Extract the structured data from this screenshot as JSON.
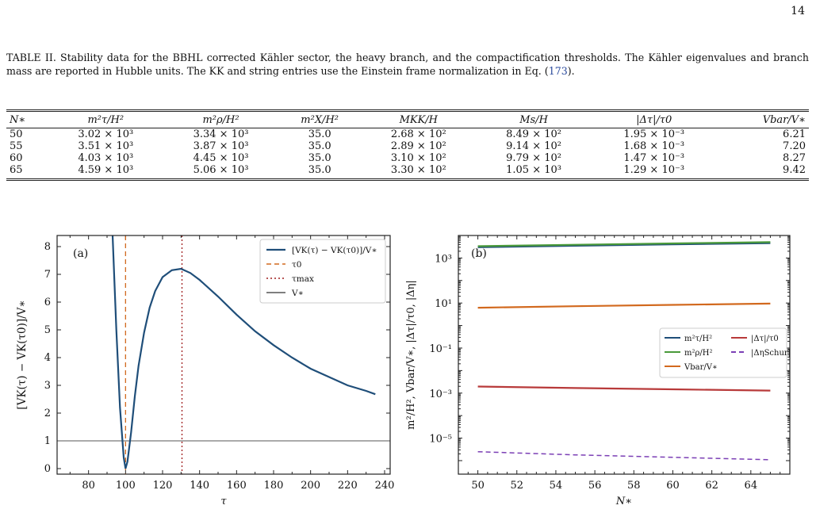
{
  "page_number": "14",
  "caption": {
    "text": "TABLE II. Stability data for the BBHL corrected Kähler sector, the heavy branch, and the compactification thresholds. The Kähler eigenvalues and branch mass are reported in Hubble units. The KK and string entries use the Einstein frame normalization in Eq. (",
    "eq_ref": "173",
    "tail": ")."
  },
  "table": {
    "headers": [
      "N∗",
      "m²τ/H²",
      "m²ρ/H²",
      "m²X/H²",
      "MKK/H",
      "Ms/H",
      "|Δτ|/τ0",
      "Vbar/V∗"
    ],
    "rows": [
      [
        "50",
        "3.02 × 10³",
        "3.34 × 10³",
        "35.0",
        "2.68 × 10²",
        "8.49 × 10²",
        "1.95 × 10⁻³",
        "6.21"
      ],
      [
        "55",
        "3.51 × 10³",
        "3.87 × 10³",
        "35.0",
        "2.89 × 10²",
        "9.14 × 10²",
        "1.68 × 10⁻³",
        "7.20"
      ],
      [
        "60",
        "4.03 × 10³",
        "4.45 × 10³",
        "35.0",
        "3.10 × 10²",
        "9.79 × 10²",
        "1.47 × 10⁻³",
        "8.27"
      ],
      [
        "65",
        "4.59 × 10³",
        "5.06 × 10³",
        "35.0",
        "3.30 × 10²",
        "1.05 × 10³",
        "1.29 × 10⁻³",
        "9.42"
      ]
    ]
  },
  "chart_data": [
    {
      "type": "line",
      "panel_label": "(a)",
      "xlabel": "τ",
      "ylabel": "[VK(τ) − VK(τ0)]/V∗",
      "xlim": [
        63,
        243
      ],
      "ylim": [
        -0.2,
        8.4
      ],
      "xticks": [
        80,
        100,
        120,
        140,
        160,
        180,
        200,
        220,
        240
      ],
      "yticks": [
        0,
        1,
        2,
        3,
        4,
        5,
        6,
        7,
        8
      ],
      "legend_position": "top-right",
      "series": [
        {
          "name": "[VK(τ) − VK(τ0)]/V∗",
          "color": "#1f4e79",
          "style": "solid",
          "x": [
            93,
            95,
            97,
            99,
            100,
            101,
            103,
            105,
            107,
            110,
            113,
            116,
            120,
            125,
            130,
            135,
            140,
            150,
            160,
            170,
            180,
            190,
            200,
            210,
            220,
            230,
            235
          ],
          "y": [
            8.4,
            5.0,
            2.2,
            0.4,
            0.0,
            0.25,
            1.3,
            2.6,
            3.7,
            4.9,
            5.8,
            6.4,
            6.9,
            7.15,
            7.2,
            7.05,
            6.8,
            6.2,
            5.55,
            4.95,
            4.45,
            4.0,
            3.6,
            3.3,
            3.0,
            2.8,
            2.68
          ]
        },
        {
          "name": "τ0",
          "color": "#d2691e",
          "style": "dashed",
          "x_value": 100
        },
        {
          "name": "τmax",
          "color": "#a01e1e",
          "style": "dotted",
          "x_value": 130.5
        },
        {
          "name": "V∗",
          "color": "#555555",
          "style": "solid",
          "y_value": 1
        }
      ]
    },
    {
      "type": "line",
      "panel_label": "(b)",
      "xlabel": "N∗",
      "ylabel": "m²/H², Vbar/V∗, |Δτ|/τ0, |Δη|",
      "log_y": true,
      "xlim": [
        49,
        66
      ],
      "ylim_log10": [
        -6.6,
        4.0
      ],
      "xticks": [
        50,
        52,
        54,
        56,
        58,
        60,
        62,
        64
      ],
      "ytick_labels": [
        "10³",
        "10¹",
        "10⁻¹",
        "10⁻³",
        "10⁻⁵"
      ],
      "legend_position": "center-right",
      "series": [
        {
          "name": "m²τ/H²",
          "color": "#1f4e79",
          "style": "solid",
          "x": [
            50,
            55,
            60,
            65
          ],
          "y": [
            3020,
            3510,
            4030,
            4590
          ]
        },
        {
          "name": "m²ρ/H²",
          "color": "#4a9a3a",
          "style": "solid",
          "x": [
            50,
            55,
            60,
            65
          ],
          "y": [
            3340,
            3870,
            4450,
            5060
          ]
        },
        {
          "name": "Vbar/V∗",
          "color": "#d2691e",
          "style": "solid",
          "x": [
            50,
            55,
            60,
            65
          ],
          "y": [
            6.21,
            7.2,
            8.27,
            9.42
          ]
        },
        {
          "name": "|Δτ|/τ0",
          "color": "#b83a3a",
          "style": "solid",
          "x": [
            50,
            55,
            60,
            65
          ],
          "y": [
            0.00195,
            0.00168,
            0.00147,
            0.00129
          ]
        },
        {
          "name": "|ΔηSchur|",
          "color": "#7b3fb5",
          "style": "dashed",
          "x": [
            50,
            55,
            60,
            65
          ],
          "y": [
            2.5e-06,
            1.8e-06,
            1.4e-06,
            1.1e-06
          ]
        }
      ]
    }
  ]
}
